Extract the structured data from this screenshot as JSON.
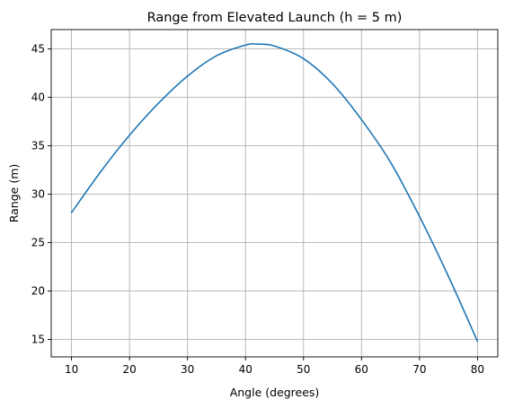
{
  "chart_data": {
    "type": "line",
    "title": "Range from Elevated Launch (h = 5 m)",
    "xlabel": "Angle (degrees)",
    "ylabel": "Range (m)",
    "xlim": [
      6.5,
      83.5
    ],
    "ylim": [
      13.2,
      47.0
    ],
    "xticks": [
      10,
      20,
      30,
      40,
      50,
      60,
      70,
      80
    ],
    "yticks": [
      15,
      20,
      25,
      30,
      35,
      40,
      45
    ],
    "grid": true,
    "series": [
      {
        "color": "#1f77b4",
        "x": [
          10,
          15,
          20,
          25,
          30,
          35,
          40,
          42,
          45,
          50,
          55,
          60,
          65,
          70,
          75,
          80
        ],
        "y": [
          28.1,
          32.3,
          36.1,
          39.4,
          42.2,
          44.3,
          45.4,
          45.5,
          45.3,
          44.0,
          41.4,
          37.7,
          33.3,
          27.7,
          21.5,
          14.8
        ]
      }
    ]
  }
}
